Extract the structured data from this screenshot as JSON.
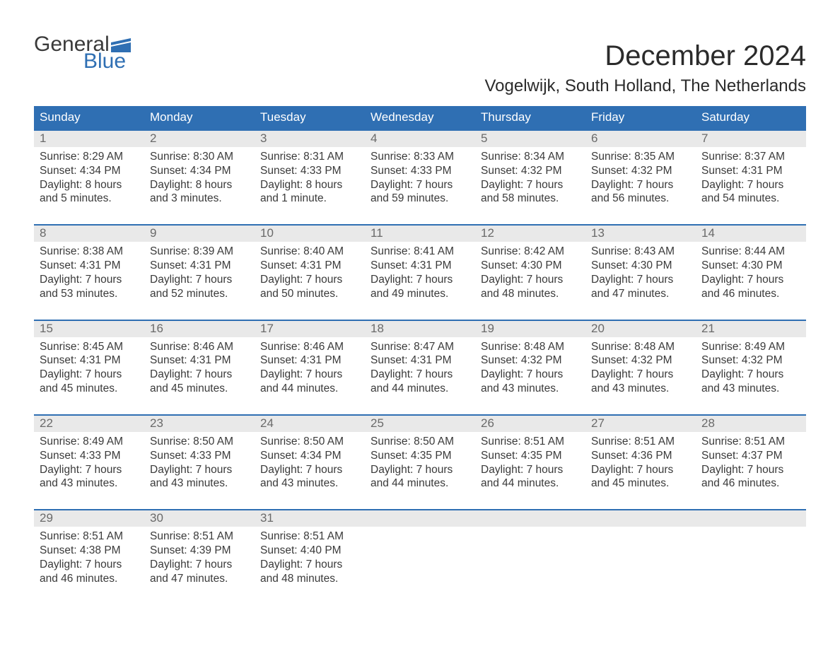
{
  "logo": {
    "general": "General",
    "blue": "Blue",
    "flag_color": "#2f6fb3"
  },
  "title": "December 2024",
  "location": "Vogelwijk, South Holland, The Netherlands",
  "colors": {
    "header_bg": "#2f6fb3",
    "header_text": "#ffffff",
    "daynum_bg": "#e9e9e9",
    "daynum_text": "#6a6a6a",
    "body_text": "#3a3a3a",
    "week_border": "#2f6fb3",
    "background": "#ffffff"
  },
  "typography": {
    "title_fontsize": 40,
    "location_fontsize": 24,
    "header_fontsize": 17,
    "daynum_fontsize": 17,
    "cell_fontsize": 15.5,
    "font_family": "Arial"
  },
  "layout": {
    "columns": 7,
    "rows": 5,
    "cell_padding": "4px 8px"
  },
  "day_labels": [
    "Sunday",
    "Monday",
    "Tuesday",
    "Wednesday",
    "Thursday",
    "Friday",
    "Saturday"
  ],
  "weeks": [
    [
      {
        "n": "1",
        "sunrise": "8:29 AM",
        "sunset": "4:34 PM",
        "daylight": "8 hours and 5 minutes."
      },
      {
        "n": "2",
        "sunrise": "8:30 AM",
        "sunset": "4:34 PM",
        "daylight": "8 hours and 3 minutes."
      },
      {
        "n": "3",
        "sunrise": "8:31 AM",
        "sunset": "4:33 PM",
        "daylight": "8 hours and 1 minute."
      },
      {
        "n": "4",
        "sunrise": "8:33 AM",
        "sunset": "4:33 PM",
        "daylight": "7 hours and 59 minutes."
      },
      {
        "n": "5",
        "sunrise": "8:34 AM",
        "sunset": "4:32 PM",
        "daylight": "7 hours and 58 minutes."
      },
      {
        "n": "6",
        "sunrise": "8:35 AM",
        "sunset": "4:32 PM",
        "daylight": "7 hours and 56 minutes."
      },
      {
        "n": "7",
        "sunrise": "8:37 AM",
        "sunset": "4:31 PM",
        "daylight": "7 hours and 54 minutes."
      }
    ],
    [
      {
        "n": "8",
        "sunrise": "8:38 AM",
        "sunset": "4:31 PM",
        "daylight": "7 hours and 53 minutes."
      },
      {
        "n": "9",
        "sunrise": "8:39 AM",
        "sunset": "4:31 PM",
        "daylight": "7 hours and 52 minutes."
      },
      {
        "n": "10",
        "sunrise": "8:40 AM",
        "sunset": "4:31 PM",
        "daylight": "7 hours and 50 minutes."
      },
      {
        "n": "11",
        "sunrise": "8:41 AM",
        "sunset": "4:31 PM",
        "daylight": "7 hours and 49 minutes."
      },
      {
        "n": "12",
        "sunrise": "8:42 AM",
        "sunset": "4:30 PM",
        "daylight": "7 hours and 48 minutes."
      },
      {
        "n": "13",
        "sunrise": "8:43 AM",
        "sunset": "4:30 PM",
        "daylight": "7 hours and 47 minutes."
      },
      {
        "n": "14",
        "sunrise": "8:44 AM",
        "sunset": "4:30 PM",
        "daylight": "7 hours and 46 minutes."
      }
    ],
    [
      {
        "n": "15",
        "sunrise": "8:45 AM",
        "sunset": "4:31 PM",
        "daylight": "7 hours and 45 minutes."
      },
      {
        "n": "16",
        "sunrise": "8:46 AM",
        "sunset": "4:31 PM",
        "daylight": "7 hours and 45 minutes."
      },
      {
        "n": "17",
        "sunrise": "8:46 AM",
        "sunset": "4:31 PM",
        "daylight": "7 hours and 44 minutes."
      },
      {
        "n": "18",
        "sunrise": "8:47 AM",
        "sunset": "4:31 PM",
        "daylight": "7 hours and 44 minutes."
      },
      {
        "n": "19",
        "sunrise": "8:48 AM",
        "sunset": "4:32 PM",
        "daylight": "7 hours and 43 minutes."
      },
      {
        "n": "20",
        "sunrise": "8:48 AM",
        "sunset": "4:32 PM",
        "daylight": "7 hours and 43 minutes."
      },
      {
        "n": "21",
        "sunrise": "8:49 AM",
        "sunset": "4:32 PM",
        "daylight": "7 hours and 43 minutes."
      }
    ],
    [
      {
        "n": "22",
        "sunrise": "8:49 AM",
        "sunset": "4:33 PM",
        "daylight": "7 hours and 43 minutes."
      },
      {
        "n": "23",
        "sunrise": "8:50 AM",
        "sunset": "4:33 PM",
        "daylight": "7 hours and 43 minutes."
      },
      {
        "n": "24",
        "sunrise": "8:50 AM",
        "sunset": "4:34 PM",
        "daylight": "7 hours and 43 minutes."
      },
      {
        "n": "25",
        "sunrise": "8:50 AM",
        "sunset": "4:35 PM",
        "daylight": "7 hours and 44 minutes."
      },
      {
        "n": "26",
        "sunrise": "8:51 AM",
        "sunset": "4:35 PM",
        "daylight": "7 hours and 44 minutes."
      },
      {
        "n": "27",
        "sunrise": "8:51 AM",
        "sunset": "4:36 PM",
        "daylight": "7 hours and 45 minutes."
      },
      {
        "n": "28",
        "sunrise": "8:51 AM",
        "sunset": "4:37 PM",
        "daylight": "7 hours and 46 minutes."
      }
    ],
    [
      {
        "n": "29",
        "sunrise": "8:51 AM",
        "sunset": "4:38 PM",
        "daylight": "7 hours and 46 minutes."
      },
      {
        "n": "30",
        "sunrise": "8:51 AM",
        "sunset": "4:39 PM",
        "daylight": "7 hours and 47 minutes."
      },
      {
        "n": "31",
        "sunrise": "8:51 AM",
        "sunset": "4:40 PM",
        "daylight": "7 hours and 48 minutes."
      },
      null,
      null,
      null,
      null
    ]
  ],
  "labels": {
    "sunrise": "Sunrise: ",
    "sunset": "Sunset: ",
    "daylight": "Daylight: "
  }
}
